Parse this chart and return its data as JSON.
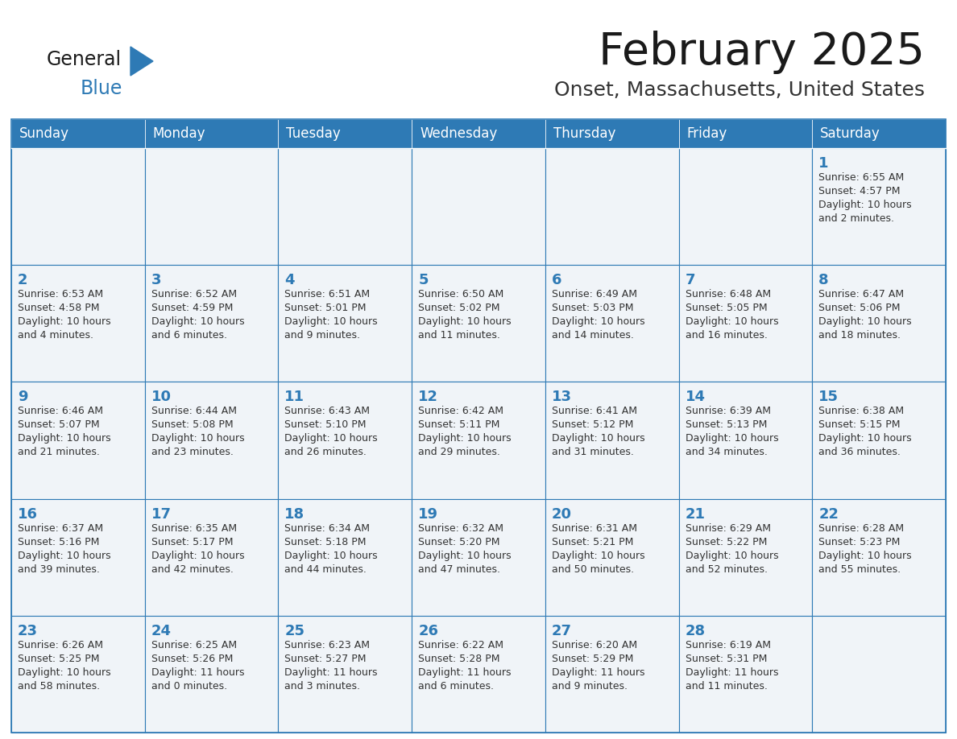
{
  "title": "February 2025",
  "subtitle": "Onset, Massachusetts, United States",
  "header_bg": "#2E7AB5",
  "header_text_color": "#FFFFFF",
  "cell_bg": "#F0F4F8",
  "border_color": "#2E7AB5",
  "day_names": [
    "Sunday",
    "Monday",
    "Tuesday",
    "Wednesday",
    "Thursday",
    "Friday",
    "Saturday"
  ],
  "title_color": "#1a1a1a",
  "subtitle_color": "#333333",
  "number_color": "#2E7AB5",
  "text_color": "#333333",
  "logo_color1": "#1a1a1a",
  "logo_color2": "#2E7AB5",
  "logo_triangle_color": "#2E7AB5",
  "weeks": [
    [
      {
        "day": "",
        "info": ""
      },
      {
        "day": "",
        "info": ""
      },
      {
        "day": "",
        "info": ""
      },
      {
        "day": "",
        "info": ""
      },
      {
        "day": "",
        "info": ""
      },
      {
        "day": "",
        "info": ""
      },
      {
        "day": "1",
        "info": "Sunrise: 6:55 AM\nSunset: 4:57 PM\nDaylight: 10 hours\nand 2 minutes."
      }
    ],
    [
      {
        "day": "2",
        "info": "Sunrise: 6:53 AM\nSunset: 4:58 PM\nDaylight: 10 hours\nand 4 minutes."
      },
      {
        "day": "3",
        "info": "Sunrise: 6:52 AM\nSunset: 4:59 PM\nDaylight: 10 hours\nand 6 minutes."
      },
      {
        "day": "4",
        "info": "Sunrise: 6:51 AM\nSunset: 5:01 PM\nDaylight: 10 hours\nand 9 minutes."
      },
      {
        "day": "5",
        "info": "Sunrise: 6:50 AM\nSunset: 5:02 PM\nDaylight: 10 hours\nand 11 minutes."
      },
      {
        "day": "6",
        "info": "Sunrise: 6:49 AM\nSunset: 5:03 PM\nDaylight: 10 hours\nand 14 minutes."
      },
      {
        "day": "7",
        "info": "Sunrise: 6:48 AM\nSunset: 5:05 PM\nDaylight: 10 hours\nand 16 minutes."
      },
      {
        "day": "8",
        "info": "Sunrise: 6:47 AM\nSunset: 5:06 PM\nDaylight: 10 hours\nand 18 minutes."
      }
    ],
    [
      {
        "day": "9",
        "info": "Sunrise: 6:46 AM\nSunset: 5:07 PM\nDaylight: 10 hours\nand 21 minutes."
      },
      {
        "day": "10",
        "info": "Sunrise: 6:44 AM\nSunset: 5:08 PM\nDaylight: 10 hours\nand 23 minutes."
      },
      {
        "day": "11",
        "info": "Sunrise: 6:43 AM\nSunset: 5:10 PM\nDaylight: 10 hours\nand 26 minutes."
      },
      {
        "day": "12",
        "info": "Sunrise: 6:42 AM\nSunset: 5:11 PM\nDaylight: 10 hours\nand 29 minutes."
      },
      {
        "day": "13",
        "info": "Sunrise: 6:41 AM\nSunset: 5:12 PM\nDaylight: 10 hours\nand 31 minutes."
      },
      {
        "day": "14",
        "info": "Sunrise: 6:39 AM\nSunset: 5:13 PM\nDaylight: 10 hours\nand 34 minutes."
      },
      {
        "day": "15",
        "info": "Sunrise: 6:38 AM\nSunset: 5:15 PM\nDaylight: 10 hours\nand 36 minutes."
      }
    ],
    [
      {
        "day": "16",
        "info": "Sunrise: 6:37 AM\nSunset: 5:16 PM\nDaylight: 10 hours\nand 39 minutes."
      },
      {
        "day": "17",
        "info": "Sunrise: 6:35 AM\nSunset: 5:17 PM\nDaylight: 10 hours\nand 42 minutes."
      },
      {
        "day": "18",
        "info": "Sunrise: 6:34 AM\nSunset: 5:18 PM\nDaylight: 10 hours\nand 44 minutes."
      },
      {
        "day": "19",
        "info": "Sunrise: 6:32 AM\nSunset: 5:20 PM\nDaylight: 10 hours\nand 47 minutes."
      },
      {
        "day": "20",
        "info": "Sunrise: 6:31 AM\nSunset: 5:21 PM\nDaylight: 10 hours\nand 50 minutes."
      },
      {
        "day": "21",
        "info": "Sunrise: 6:29 AM\nSunset: 5:22 PM\nDaylight: 10 hours\nand 52 minutes."
      },
      {
        "day": "22",
        "info": "Sunrise: 6:28 AM\nSunset: 5:23 PM\nDaylight: 10 hours\nand 55 minutes."
      }
    ],
    [
      {
        "day": "23",
        "info": "Sunrise: 6:26 AM\nSunset: 5:25 PM\nDaylight: 10 hours\nand 58 minutes."
      },
      {
        "day": "24",
        "info": "Sunrise: 6:25 AM\nSunset: 5:26 PM\nDaylight: 11 hours\nand 0 minutes."
      },
      {
        "day": "25",
        "info": "Sunrise: 6:23 AM\nSunset: 5:27 PM\nDaylight: 11 hours\nand 3 minutes."
      },
      {
        "day": "26",
        "info": "Sunrise: 6:22 AM\nSunset: 5:28 PM\nDaylight: 11 hours\nand 6 minutes."
      },
      {
        "day": "27",
        "info": "Sunrise: 6:20 AM\nSunset: 5:29 PM\nDaylight: 11 hours\nand 9 minutes."
      },
      {
        "day": "28",
        "info": "Sunrise: 6:19 AM\nSunset: 5:31 PM\nDaylight: 11 hours\nand 11 minutes."
      },
      {
        "day": "",
        "info": ""
      }
    ]
  ]
}
